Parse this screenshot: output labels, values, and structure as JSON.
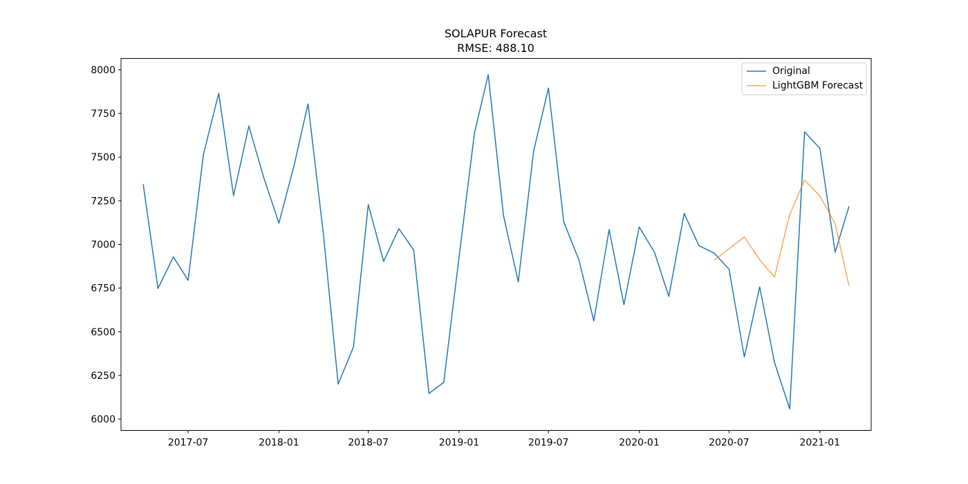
{
  "chart_data": {
    "type": "line",
    "title": "SOLAPUR Forecast",
    "subtitle": "RMSE: 488.10",
    "xlabel": "",
    "ylabel": "",
    "xlim": [
      "2017-02-15",
      "2021-04-15"
    ],
    "ylim": [
      5935,
      8065
    ],
    "x_ticks": [
      "2017-07",
      "2018-01",
      "2018-07",
      "2019-01",
      "2019-07",
      "2020-01",
      "2020-07",
      "2021-01"
    ],
    "y_ticks": [
      6000,
      6250,
      6500,
      6750,
      7000,
      7250,
      7500,
      7750,
      8000
    ],
    "grid": false,
    "legend_position": "top-right",
    "series": [
      {
        "name": "Original",
        "color": "#1f77b4",
        "x": [
          "2017-04-01",
          "2017-05-01",
          "2017-06-01",
          "2017-07-01",
          "2017-08-01",
          "2017-09-01",
          "2017-10-01",
          "2017-11-01",
          "2017-12-01",
          "2018-01-01",
          "2018-02-01",
          "2018-03-01",
          "2018-04-01",
          "2018-05-01",
          "2018-06-01",
          "2018-07-01",
          "2018-08-01",
          "2018-09-01",
          "2018-10-01",
          "2018-11-01",
          "2018-12-01",
          "2019-01-01",
          "2019-02-01",
          "2019-03-01",
          "2019-04-01",
          "2019-05-01",
          "2019-06-01",
          "2019-07-01",
          "2019-08-01",
          "2019-09-01",
          "2019-10-01",
          "2019-11-01",
          "2019-12-01",
          "2020-01-01",
          "2020-02-01",
          "2020-03-01",
          "2020-04-01",
          "2020-05-01",
          "2020-06-01",
          "2020-07-01",
          "2020-08-01",
          "2020-09-01",
          "2020-10-01",
          "2020-11-01",
          "2020-12-01",
          "2021-01-01",
          "2021-02-01",
          "2021-03-01"
        ],
        "values": [
          7345,
          6748,
          6928,
          6795,
          7515,
          7865,
          7280,
          7678,
          7385,
          7122,
          7455,
          7805,
          7060,
          6200,
          6413,
          7228,
          6903,
          7090,
          6968,
          6147,
          6210,
          6930,
          7635,
          7972,
          7165,
          6785,
          7535,
          7895,
          7130,
          6910,
          6562,
          7085,
          6655,
          7100,
          6955,
          6702,
          7177,
          6993,
          6950,
          6858,
          6355,
          6757,
          6325,
          6058,
          7645,
          7550,
          6955,
          7218
        ]
      },
      {
        "name": "LightGBM Forecast",
        "color": "#ff7f0e",
        "x": [
          "2020-06-01",
          "2020-07-01",
          "2020-08-01",
          "2020-09-01",
          "2020-10-01",
          "2020-11-01",
          "2020-12-01",
          "2021-01-01",
          "2021-02-01",
          "2021-03-01"
        ],
        "values": [
          6910,
          6975,
          7043,
          6912,
          6813,
          7172,
          7368,
          7278,
          7118,
          6762
        ]
      }
    ]
  }
}
